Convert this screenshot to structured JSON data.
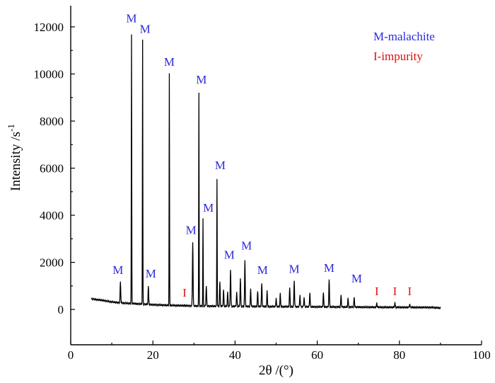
{
  "chart_data": {
    "type": "line",
    "title": "",
    "xlabel": "2θ /(°)",
    "ylabel": "Intensity /s",
    "ylabel_superscript": "-1",
    "xlim": [
      0,
      100
    ],
    "ylim": [
      -1500,
      12900
    ],
    "xticks": [
      0,
      20,
      40,
      60,
      80,
      100
    ],
    "yticks": [
      0,
      2000,
      4000,
      6000,
      8000,
      10000,
      12000
    ],
    "grid": false,
    "colors": {
      "malachite": "#2b2bd6",
      "impurity": "#dd1111",
      "trace": "#000000"
    },
    "legend": {
      "placement": "top-right",
      "entries": [
        {
          "label": "M-malachite",
          "color": "#2b2bd6"
        },
        {
          "label": "I-impurity",
          "color": "#dd1111"
        }
      ]
    },
    "baseline": [
      [
        5,
        450
      ],
      [
        8,
        380
      ],
      [
        10,
        320
      ],
      [
        12,
        280
      ],
      [
        15,
        250
      ],
      [
        20,
        200
      ],
      [
        25,
        170
      ],
      [
        30,
        150
      ],
      [
        35,
        140
      ],
      [
        40,
        130
      ],
      [
        50,
        120
      ],
      [
        60,
        110
      ],
      [
        70,
        100
      ],
      [
        80,
        90
      ],
      [
        88,
        85
      ],
      [
        90,
        60
      ]
    ],
    "peaks": [
      {
        "x": 12.1,
        "y": 1150
      },
      {
        "x": 14.8,
        "y": 11650
      },
      {
        "x": 17.5,
        "y": 11400
      },
      {
        "x": 18.9,
        "y": 950
      },
      {
        "x": 24.0,
        "y": 10000
      },
      {
        "x": 27.7,
        "y": 180
      },
      {
        "x": 29.7,
        "y": 2850
      },
      {
        "x": 31.2,
        "y": 9200
      },
      {
        "x": 32.2,
        "y": 3850
      },
      {
        "x": 33.0,
        "y": 1000
      },
      {
        "x": 35.6,
        "y": 5550
      },
      {
        "x": 36.3,
        "y": 1150
      },
      {
        "x": 37.2,
        "y": 800
      },
      {
        "x": 38.2,
        "y": 700
      },
      {
        "x": 38.9,
        "y": 1700
      },
      {
        "x": 40.4,
        "y": 700
      },
      {
        "x": 41.3,
        "y": 1300
      },
      {
        "x": 42.4,
        "y": 2050
      },
      {
        "x": 43.8,
        "y": 850
      },
      {
        "x": 45.5,
        "y": 750
      },
      {
        "x": 46.5,
        "y": 1100
      },
      {
        "x": 47.8,
        "y": 750
      },
      {
        "x": 50.0,
        "y": 450
      },
      {
        "x": 51.0,
        "y": 650
      },
      {
        "x": 53.3,
        "y": 900
      },
      {
        "x": 54.4,
        "y": 1200
      },
      {
        "x": 55.8,
        "y": 600
      },
      {
        "x": 56.8,
        "y": 500
      },
      {
        "x": 58.2,
        "y": 700
      },
      {
        "x": 61.5,
        "y": 700
      },
      {
        "x": 62.9,
        "y": 1250
      },
      {
        "x": 65.8,
        "y": 600
      },
      {
        "x": 67.5,
        "y": 450
      },
      {
        "x": 69.0,
        "y": 500
      },
      {
        "x": 74.5,
        "y": 250
      },
      {
        "x": 78.9,
        "y": 270
      },
      {
        "x": 82.5,
        "y": 230
      }
    ],
    "labels": [
      {
        "text": "M",
        "x": 11.5,
        "y": 1500,
        "type": "malachite"
      },
      {
        "text": "M",
        "x": 14.8,
        "y": 12200,
        "type": "malachite"
      },
      {
        "text": "M",
        "x": 18.1,
        "y": 11750,
        "type": "malachite"
      },
      {
        "text": "M",
        "x": 19.5,
        "y": 1350,
        "type": "malachite"
      },
      {
        "text": "M",
        "x": 24.0,
        "y": 10350,
        "type": "malachite"
      },
      {
        "text": "I",
        "x": 27.7,
        "y": 550,
        "type": "impurity"
      },
      {
        "text": "M",
        "x": 29.3,
        "y": 3200,
        "type": "malachite"
      },
      {
        "text": "M",
        "x": 31.8,
        "y": 9600,
        "type": "malachite"
      },
      {
        "text": "M",
        "x": 33.5,
        "y": 4150,
        "type": "malachite"
      },
      {
        "text": "M",
        "x": 36.4,
        "y": 5950,
        "type": "malachite"
      },
      {
        "text": "M",
        "x": 38.6,
        "y": 2150,
        "type": "malachite"
      },
      {
        "text": "M",
        "x": 42.8,
        "y": 2550,
        "type": "malachite"
      },
      {
        "text": "M",
        "x": 46.7,
        "y": 1500,
        "type": "malachite"
      },
      {
        "text": "M",
        "x": 54.4,
        "y": 1550,
        "type": "malachite"
      },
      {
        "text": "M",
        "x": 62.9,
        "y": 1600,
        "type": "malachite"
      },
      {
        "text": "M",
        "x": 69.6,
        "y": 1150,
        "type": "malachite"
      },
      {
        "text": "I",
        "x": 74.5,
        "y": 600,
        "type": "impurity"
      },
      {
        "text": "I",
        "x": 78.9,
        "y": 600,
        "type": "impurity"
      },
      {
        "text": "I",
        "x": 82.5,
        "y": 600,
        "type": "impurity"
      }
    ]
  }
}
